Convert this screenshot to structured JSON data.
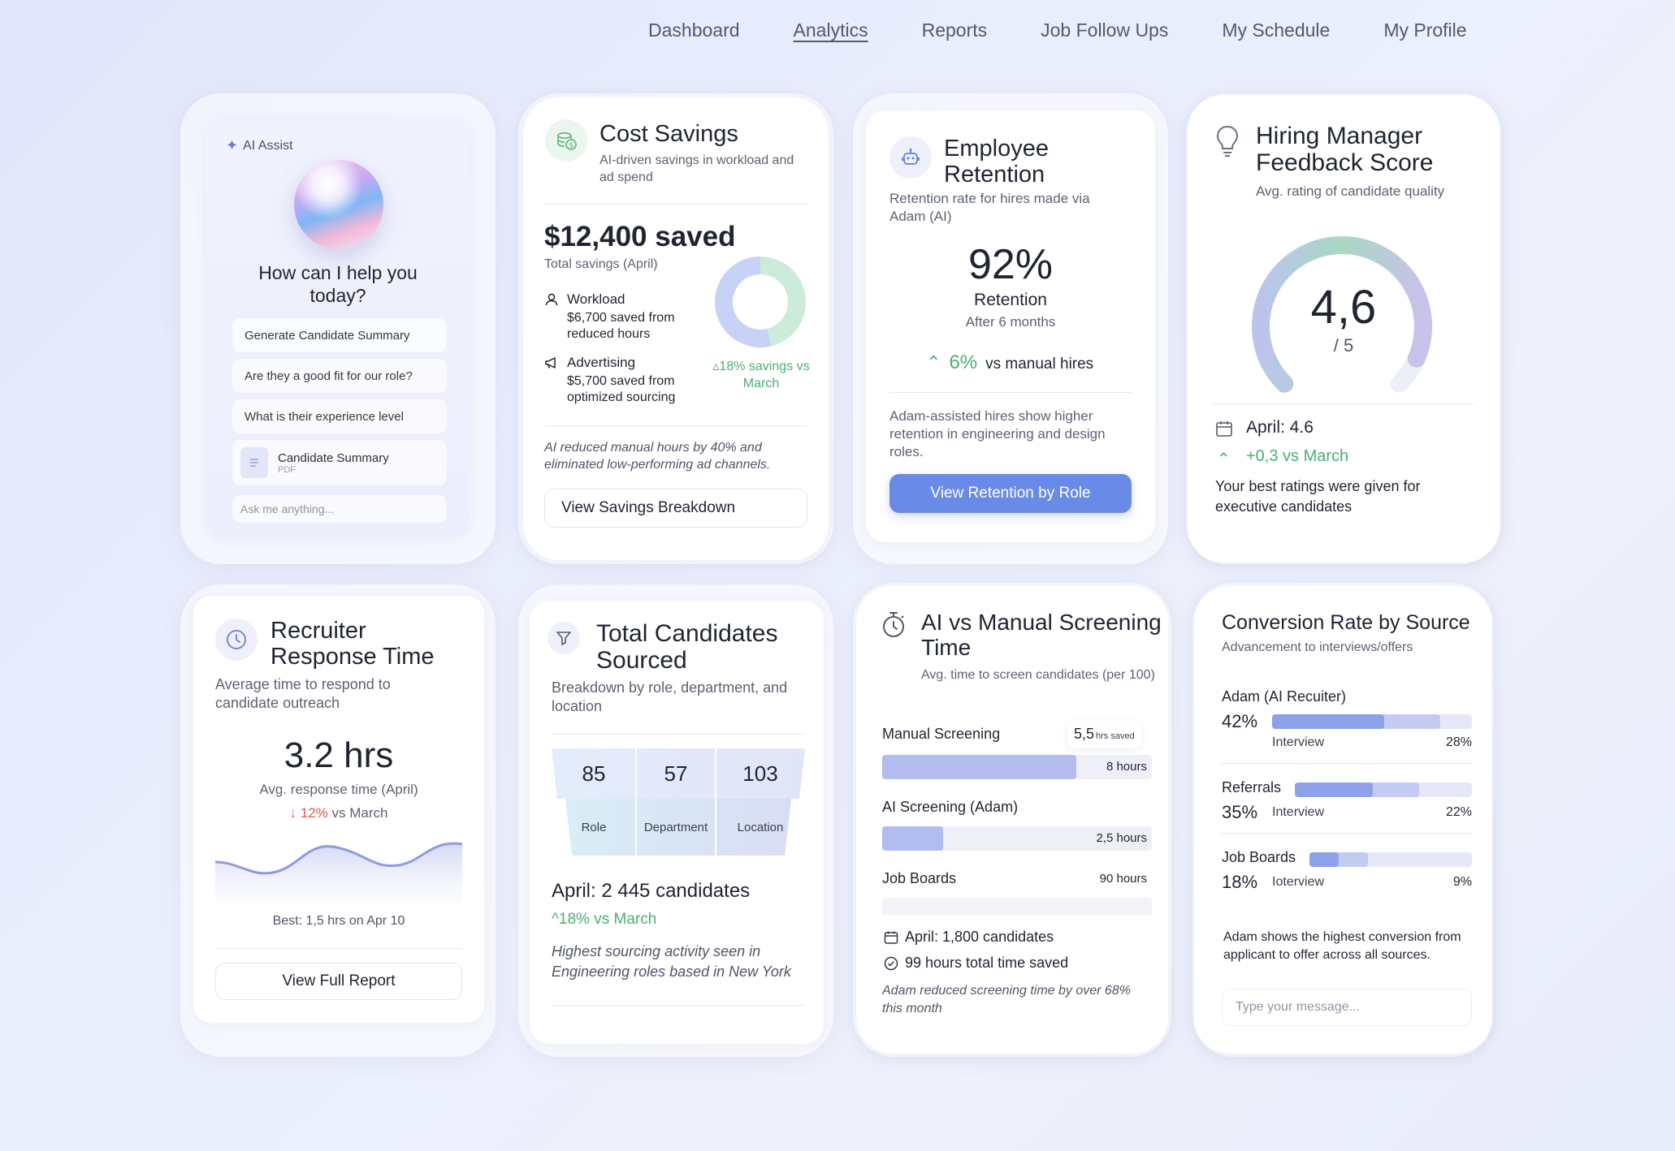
{
  "nav": {
    "items": [
      "Dashboard",
      "Analytics",
      "Reports",
      "Job Follow Ups",
      "My Schedule",
      "My Profile"
    ],
    "active": "Analytics"
  },
  "ai_assist": {
    "badge": "AI Assist",
    "prompt": "How can I help you today?",
    "suggestions": [
      "Generate Candidate Summary",
      "Are they a good fit for our role?",
      "What is their experience level"
    ],
    "file": {
      "name": "Candidate Summary",
      "type": "PDF"
    },
    "input_placeholder": "Ask me anything..."
  },
  "cost_savings": {
    "title": "Cost Savings",
    "subtitle": "AI-driven savings in workload and ad spend",
    "total": "$12,400 saved",
    "total_label": "Total savings (April)",
    "workload_label": "Workload",
    "workload_text": "$6,700 saved from reduced hours",
    "advertising_label": "Advertising",
    "advertising_text": "$5,700 saved from optimized sourcing",
    "change": "18% savings vs March",
    "note": "AI reduced manual hours by 40% and eliminated low-performing ad channels.",
    "button": "View Savings Breakdown",
    "donut": {
      "workload": 6700,
      "advertising": 5700
    },
    "colors": {
      "workload": "#c6d3f6",
      "advertising": "#cdebd9",
      "positive": "#4caf72"
    }
  },
  "retention": {
    "title": "Employee Retention",
    "subtitle": "Retention rate for hires made via Adam (AI)",
    "value": "92%",
    "label": "Retention",
    "period": "After 6 months",
    "change_value": "6%",
    "change_text": "vs manual hires",
    "note": "Adam-assisted hires show higher retention in engineering and design roles.",
    "button": "View Retention by Role",
    "accent": "#6a8ae8"
  },
  "hiring_feedback": {
    "title": "Hiring Manager Feedback Score",
    "subtitle": "Avg. rating of candidate quality",
    "score": "4,6",
    "scale": "/ 5",
    "score_value": 4.6,
    "april": "April: 4.6",
    "change": "+0,3 vs March",
    "note": "Your best ratings were given for executive candidates"
  },
  "response_time": {
    "title": "Recruiter Response Time",
    "subtitle": "Average time to respond to candidate outreach",
    "value": "3.2 hrs",
    "label": "Avg. response time (April)",
    "change_value": "12%",
    "change_text": "vs March",
    "best": "Best: 1,5 hrs on Apr 10",
    "button": "View Full Report",
    "negative": "#e05a4e"
  },
  "candidates": {
    "title": "Total Candidates Sourced",
    "subtitle": "Breakdown by role, department, and location",
    "values": [
      "85",
      "57",
      "103"
    ],
    "labels": [
      "Role",
      "Department",
      "Location"
    ],
    "april": "April: 2 445 candidates",
    "change": "18% vs March",
    "note": "Highest sourcing activity seen in Engineering roles based in New York"
  },
  "screening": {
    "title": "AI vs Manual Screening Time",
    "subtitle": "Avg. time to screen candidates (per 100)",
    "rows": [
      {
        "name": "Manual Screening",
        "hours_label": "8 hours",
        "hours": 8,
        "badge_value": "5,5",
        "badge_unit": "hrs saved"
      },
      {
        "name": "AI Screening (Adam)",
        "hours_label": "2,5 hours",
        "hours": 2.5
      },
      {
        "name": "Job Boards",
        "hours_label": "90 hours",
        "hours": 90
      }
    ],
    "april": "April: 1,800 candidates",
    "saved": "99 hours total time saved",
    "note": "Adam reduced screening time by over 68% this month"
  },
  "conversion": {
    "title": "Conversion Rate by Source",
    "subtitle": "Advancement to interviews/offers",
    "rows": [
      {
        "name": "Adam (AI Recuiter)",
        "pct": "42%",
        "stage": "Interview",
        "stage_pct": "28%",
        "value": 42,
        "stage_value": 28
      },
      {
        "name": "Referrals",
        "pct": "35%",
        "stage": "Interview",
        "stage_pct": "22%",
        "value": 35,
        "stage_value": 22
      },
      {
        "name": "Job Boards",
        "pct": "18%",
        "stage": "Ioterview",
        "stage_pct": "9%",
        "value": 18,
        "stage_value": 9
      }
    ],
    "note": "Adam shows the highest conversion from applicant to offer across all sources.",
    "input_placeholder": "Type your message..."
  }
}
